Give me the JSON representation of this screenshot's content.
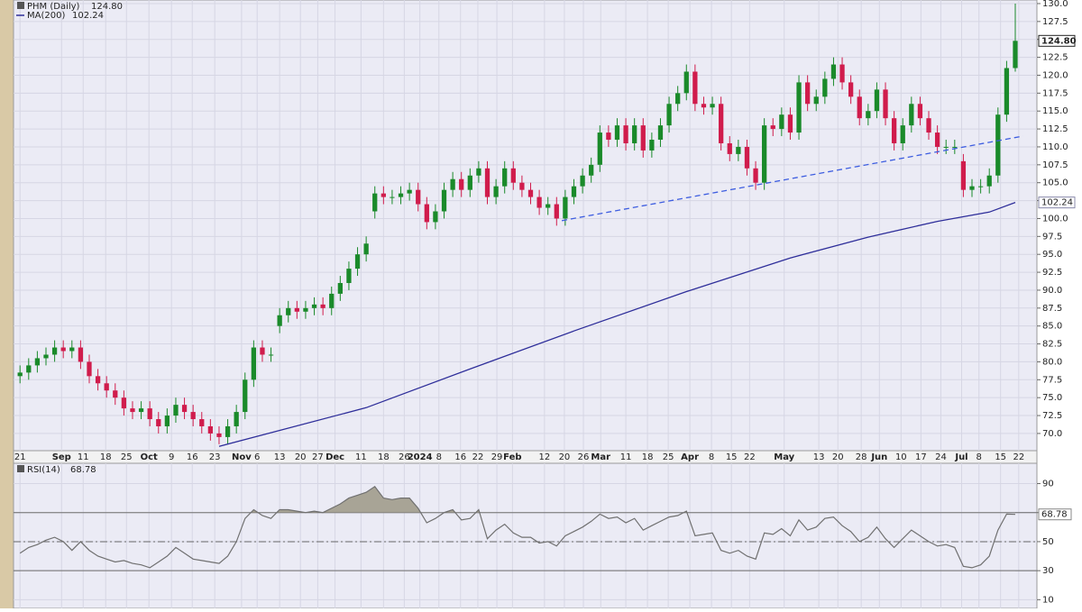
{
  "chart_data": [
    {
      "type": "candlestick",
      "series": [
        {
          "name": "PHM (Daily)",
          "last_label": "124.80",
          "color_up": "#1a8a2a",
          "color_down": "#d01c4c",
          "open": [
            78,
            78.5,
            79.5,
            80.5,
            81,
            82,
            81.5,
            82,
            80,
            78,
            77,
            76,
            75,
            73.5,
            73,
            73.5,
            72,
            71,
            72.5,
            74,
            73,
            72,
            71,
            70,
            69.5,
            71,
            73,
            77.5,
            82,
            81,
            85,
            86.5,
            87.5,
            87,
            87.5,
            88,
            87.5,
            89.5,
            91,
            93,
            95,
            101,
            103.5,
            103,
            103,
            103.5,
            104,
            102,
            99.5,
            101,
            104,
            105.5,
            104,
            106,
            107,
            103,
            104.5,
            107,
            105,
            104,
            103,
            101.5,
            102,
            100,
            103,
            104.5,
            106,
            107.5,
            112,
            111,
            113,
            110.5,
            113,
            109.5,
            111,
            113,
            116,
            117.5,
            120.5,
            116,
            115.5,
            116,
            110.5,
            109,
            110,
            107,
            105,
            113,
            112.5,
            114.5,
            112,
            119,
            116,
            117,
            119.5,
            121.5,
            119,
            117,
            114,
            115,
            118,
            114,
            110.5,
            113,
            116,
            114,
            112,
            110,
            110,
            108,
            104,
            104.5,
            104.5,
            106,
            114.5,
            121
          ],
          "high": [
            79.5,
            80.5,
            81.5,
            82,
            83,
            83,
            83,
            83,
            81,
            79,
            78,
            77,
            76,
            74.5,
            74.5,
            74.5,
            73,
            73.5,
            75,
            75,
            74,
            73,
            72,
            71,
            72,
            74,
            78.5,
            83,
            83,
            82,
            87.5,
            88.5,
            88.5,
            88.5,
            89,
            89,
            90.5,
            92,
            94,
            96,
            97.5,
            104.5,
            104.5,
            104,
            104.5,
            105,
            105,
            103,
            102,
            105,
            106.5,
            106.5,
            107,
            108,
            108,
            105.5,
            108,
            108,
            106,
            105,
            104,
            103,
            103,
            104,
            105.5,
            107,
            108.5,
            113,
            113,
            114,
            114,
            114,
            114,
            112,
            114,
            117,
            118.5,
            121.5,
            121.5,
            117,
            117,
            117,
            111.5,
            111,
            111,
            108,
            114,
            114,
            115.5,
            115.5,
            120,
            120,
            118,
            120.5,
            122.5,
            122.5,
            120,
            118,
            116,
            119,
            119,
            115,
            114,
            117,
            117,
            115,
            113,
            111,
            111,
            109,
            105.5,
            105.5,
            107,
            115.5,
            122,
            130
          ],
          "low": [
            77,
            77.5,
            78.5,
            79.5,
            80,
            80.5,
            80.5,
            79,
            77,
            76,
            75,
            74,
            72.5,
            72,
            72,
            71,
            70,
            70,
            71.5,
            72,
            71,
            70,
            69,
            68.5,
            68.5,
            70,
            72,
            76.5,
            80,
            80,
            84,
            85.5,
            86,
            86,
            86.5,
            86.5,
            86.5,
            88.5,
            90,
            92,
            94,
            100,
            102,
            102,
            102,
            102.5,
            101,
            98.5,
            98.5,
            100,
            103,
            103,
            103,
            105,
            102,
            102,
            103.5,
            104,
            103,
            102,
            100.5,
            100.5,
            99,
            99,
            102,
            103.5,
            105,
            106.5,
            110,
            110,
            109.5,
            109.5,
            108.5,
            108.5,
            110,
            112,
            115,
            116.5,
            115,
            114.5,
            114.5,
            109.5,
            108,
            108,
            106,
            104,
            104,
            111.5,
            111.5,
            111,
            111,
            115,
            115,
            116,
            118.5,
            118,
            116,
            113,
            113,
            114,
            113,
            109.5,
            109.5,
            112,
            113,
            111,
            109,
            109,
            109,
            103,
            103,
            103.5,
            103.5,
            105,
            113.5,
            120.5
          ],
          "close": [
            78.5,
            79.5,
            80.5,
            81,
            82,
            81.5,
            82,
            80,
            78,
            77,
            76,
            75,
            73.5,
            73,
            73.5,
            72,
            71,
            72.5,
            74,
            73,
            72,
            71,
            70,
            69.5,
            71,
            73,
            77.5,
            82,
            81,
            81,
            86.5,
            87.5,
            87,
            87.5,
            88,
            87.5,
            89.5,
            91,
            93,
            95,
            96.5,
            103.5,
            103,
            103,
            103.5,
            104,
            102,
            99.5,
            101,
            104,
            105.5,
            104,
            106,
            107,
            103,
            104.5,
            107,
            105,
            104,
            103,
            101.5,
            102,
            100,
            103,
            104.5,
            106,
            107.5,
            112,
            111,
            113,
            110.5,
            113,
            109.5,
            111,
            113,
            116,
            117.5,
            120.5,
            116,
            115.5,
            116,
            110.5,
            109,
            110,
            107,
            105,
            113,
            112.5,
            114.5,
            112,
            119,
            116,
            117,
            119.5,
            121.5,
            119,
            117,
            114,
            115,
            118,
            114,
            110.5,
            113,
            116,
            114,
            112,
            110,
            110,
            110,
            104,
            104.5,
            104.5,
            106,
            114.5,
            121,
            124.8
          ]
        }
      ],
      "overlays": [
        {
          "name": "MA(200)",
          "last_label": "102.24",
          "color": "#2e2e9a",
          "x": [
            23,
            40,
            52,
            64,
            77,
            89,
            98,
            106,
            112,
            115
          ],
          "values": [
            68.2,
            73.6,
            79,
            84.3,
            89.8,
            94.5,
            97.4,
            99.6,
            100.9,
            102.24
          ]
        }
      ],
      "trendline": {
        "color": "#3d5de0",
        "x": [
          62.6,
          115.9
        ],
        "values": [
          99.7,
          111.5
        ]
      },
      "xlim": [
        -0.75,
        117.5
      ],
      "xticks": [
        {
          "value": 0,
          "label": "21"
        },
        {
          "value": 4.8,
          "label": "Sep"
        },
        {
          "value": 7.3,
          "label": "11"
        },
        {
          "value": 9.9,
          "label": "18"
        },
        {
          "value": 12.3,
          "label": "25"
        },
        {
          "value": 14.9,
          "label": "Oct"
        },
        {
          "value": 17.5,
          "label": "9"
        },
        {
          "value": 19.9,
          "label": "16"
        },
        {
          "value": 22.5,
          "label": "23"
        },
        {
          "value": 25.6,
          "label": "Nov"
        },
        {
          "value": 27.4,
          "label": "6"
        },
        {
          "value": 30,
          "label": "13"
        },
        {
          "value": 32.4,
          "label": "20"
        },
        {
          "value": 34.4,
          "label": "27"
        },
        {
          "value": 36.4,
          "label": "Dec"
        },
        {
          "value": 39.4,
          "label": "11"
        },
        {
          "value": 42,
          "label": "18"
        },
        {
          "value": 44.4,
          "label": "26"
        },
        {
          "value": 46.2,
          "label": "2024"
        },
        {
          "value": 48.4,
          "label": "8"
        },
        {
          "value": 50.9,
          "label": "16"
        },
        {
          "value": 52.9,
          "label": "22"
        },
        {
          "value": 55.1,
          "label": "29"
        },
        {
          "value": 56.9,
          "label": "Feb"
        },
        {
          "value": 60.6,
          "label": "12"
        },
        {
          "value": 62.9,
          "label": "20"
        },
        {
          "value": 65.1,
          "label": "26"
        },
        {
          "value": 67.1,
          "label": "Mar"
        },
        {
          "value": 70,
          "label": "11"
        },
        {
          "value": 72.5,
          "label": "18"
        },
        {
          "value": 74.9,
          "label": "25"
        },
        {
          "value": 77.4,
          "label": "Apr"
        },
        {
          "value": 79.9,
          "label": "8"
        },
        {
          "value": 82.2,
          "label": "15"
        },
        {
          "value": 84.3,
          "label": "22"
        },
        {
          "value": 88.3,
          "label": "May"
        },
        {
          "value": 92.3,
          "label": "13"
        },
        {
          "value": 94.5,
          "label": "20"
        },
        {
          "value": 97.2,
          "label": "28"
        },
        {
          "value": 99.3,
          "label": "Jun"
        },
        {
          "value": 101.8,
          "label": "10"
        },
        {
          "value": 104.1,
          "label": "17"
        },
        {
          "value": 106.4,
          "label": "24"
        },
        {
          "value": 108.8,
          "label": "Jul"
        },
        {
          "value": 110.8,
          "label": "8"
        },
        {
          "value": 113.3,
          "label": "15"
        },
        {
          "value": 115.4,
          "label": "22"
        }
      ],
      "ylim": [
        67.6,
        130.5
      ],
      "yticks": [
        {
          "value": 70,
          "label": "70.0"
        },
        72.5,
        {
          "value": 75,
          "label": "75.0"
        },
        77.5,
        {
          "value": 80,
          "label": "80.0"
        },
        82.5,
        {
          "value": 85,
          "label": "85.0"
        },
        87.5,
        {
          "value": 90,
          "label": "90.0"
        },
        92.5,
        {
          "value": 95,
          "label": "95.0"
        },
        97.5,
        {
          "value": 100,
          "label": "100.0"
        },
        102.5,
        {
          "value": 105,
          "label": "105.0"
        },
        107.5,
        {
          "value": 110,
          "label": "110.0"
        },
        112.5,
        {
          "value": 115,
          "label": "115.0"
        },
        117.5,
        {
          "value": 120,
          "label": "120.0"
        },
        122.5,
        {
          "value": 125,
          "label": "125.0"
        },
        127.5,
        {
          "value": 130,
          "label": "130.0"
        }
      ],
      "grid": true
    },
    {
      "type": "line",
      "series": [
        {
          "name": "RSI(14)",
          "last_label": "68.78",
          "color": "#707070",
          "values": [
            42,
            46,
            48,
            51,
            53,
            50,
            44,
            50,
            44,
            40,
            38,
            36,
            37,
            35,
            34,
            32,
            36,
            40,
            46,
            42,
            38,
            37,
            36,
            35,
            40,
            50,
            66,
            72,
            68,
            66,
            72,
            72,
            71,
            70,
            71,
            70,
            73,
            76,
            80,
            82,
            84,
            88,
            80,
            79,
            80,
            80,
            73,
            63,
            66,
            70,
            72,
            65,
            66,
            72,
            52,
            58,
            62,
            56,
            53,
            53,
            49,
            50,
            47,
            54,
            57,
            60,
            64,
            69,
            66,
            67,
            63,
            66,
            58,
            61,
            64,
            67,
            68,
            71,
            54,
            55,
            56,
            44,
            42,
            44,
            40,
            38,
            56,
            55,
            59,
            54,
            65,
            58,
            60,
            66,
            67,
            61,
            57,
            50,
            53,
            60,
            52,
            46,
            52,
            58,
            54,
            50,
            47,
            48,
            46,
            33,
            32,
            34,
            40,
            58,
            69,
            68.78
          ]
        }
      ],
      "xlim": [
        -0.75,
        117.5
      ],
      "ylim": [
        4,
        104
      ],
      "yticks": [
        10,
        30,
        50,
        70,
        90
      ],
      "reference_lines": [
        {
          "value": 70,
          "style": "solid"
        },
        {
          "value": 50,
          "style": "dashdot"
        },
        {
          "value": 30,
          "style": "solid"
        }
      ],
      "shade_color": "#a8a496",
      "grid": true
    }
  ]
}
